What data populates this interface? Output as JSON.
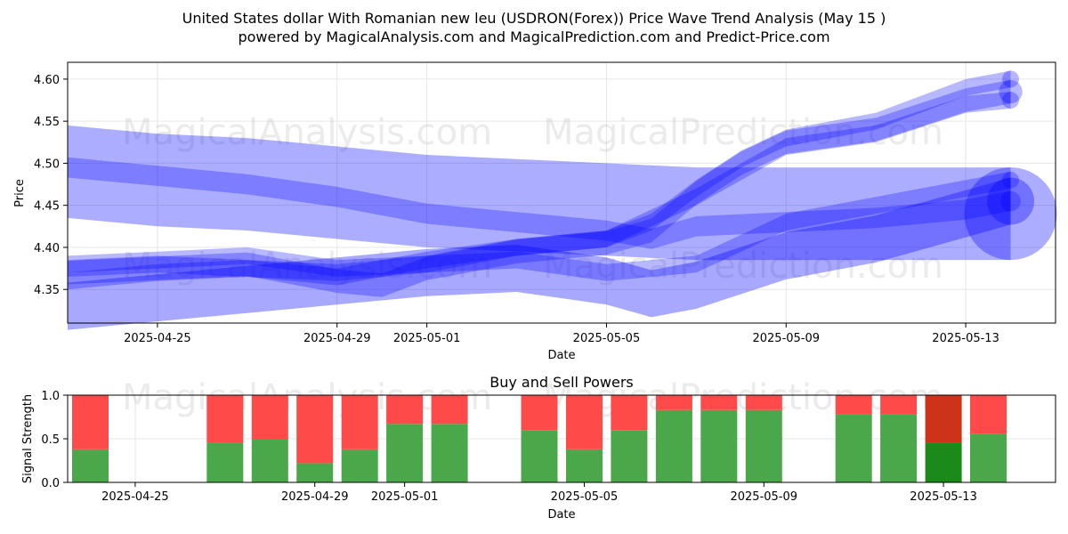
{
  "chart_data": [
    {
      "type": "area",
      "title": "United States dollar With Romanian new leu (USDRON(Forex)) Price Wave Trend Analysis (May 15 )",
      "subtitle": "powered by MagicalAnalysis.com and MagicalPrediction.com and Predict-Price.com",
      "xlabel": "Date",
      "ylabel": "Price",
      "x_ticks": [
        "2025-04-25",
        "2025-04-29",
        "2025-05-01",
        "2025-05-05",
        "2025-05-09",
        "2025-05-13"
      ],
      "y_ticks": [
        "4.35",
        "4.40",
        "4.45",
        "4.50",
        "4.55",
        "4.60"
      ],
      "xlim": [
        "2025-04-23",
        "2025-05-15"
      ],
      "ylim": [
        4.31,
        4.62
      ],
      "grid": true,
      "watermarks": [
        "MagicalAnalysis.com",
        "MagicalPrediction.com"
      ],
      "band_color": "#0000ff",
      "series": [
        {
          "x": [
            "2025-04-23",
            "2025-04-25",
            "2025-04-27",
            "2025-04-29",
            "2025-05-01",
            "2025-05-03",
            "2025-05-05",
            "2025-05-07",
            "2025-05-09",
            "2025-05-11",
            "2025-05-13",
            "2025-05-14"
          ],
          "y": [
            4.49,
            4.48,
            4.475,
            4.465,
            4.455,
            4.45,
            4.445,
            4.44,
            4.44,
            4.44,
            4.44,
            4.44
          ],
          "band": 0.055
        },
        {
          "x": [
            "2025-04-23",
            "2025-04-25",
            "2025-04-27",
            "2025-04-29",
            "2025-05-01",
            "2025-05-03",
            "2025-05-05",
            "2025-05-06",
            "2025-05-07",
            "2025-05-09",
            "2025-05-11",
            "2025-05-13",
            "2025-05-14"
          ],
          "y": [
            4.495,
            4.485,
            4.475,
            4.46,
            4.44,
            4.43,
            4.42,
            4.41,
            4.425,
            4.43,
            4.435,
            4.445,
            4.455
          ],
          "band": 0.012
        },
        {
          "x": [
            "2025-04-23",
            "2025-04-25",
            "2025-04-27",
            "2025-04-29",
            "2025-05-01",
            "2025-05-03",
            "2025-05-05",
            "2025-05-06",
            "2025-05-07",
            "2025-05-09",
            "2025-05-11",
            "2025-05-13",
            "2025-05-14"
          ],
          "y": [
            4.33,
            4.34,
            4.35,
            4.36,
            4.37,
            4.375,
            4.36,
            4.345,
            4.355,
            4.39,
            4.41,
            4.44,
            4.455
          ],
          "band": 0.028
        },
        {
          "x": [
            "2025-04-23",
            "2025-04-25",
            "2025-04-27",
            "2025-04-29",
            "2025-05-01",
            "2025-05-03",
            "2025-05-05",
            "2025-05-07",
            "2025-05-09",
            "2025-05-11",
            "2025-05-13",
            "2025-05-14"
          ],
          "y": [
            4.375,
            4.38,
            4.375,
            4.37,
            4.38,
            4.385,
            4.37,
            4.38,
            4.43,
            4.45,
            4.47,
            4.48
          ],
          "band": 0.01
        },
        {
          "x": [
            "2025-04-23",
            "2025-04-25",
            "2025-04-27",
            "2025-04-29",
            "2025-04-30",
            "2025-05-01",
            "2025-05-03",
            "2025-05-05",
            "2025-05-06",
            "2025-05-07",
            "2025-05-08",
            "2025-05-09",
            "2025-05-11",
            "2025-05-13",
            "2025-05-14"
          ],
          "y": [
            4.37,
            4.375,
            4.38,
            4.36,
            4.355,
            4.375,
            4.395,
            4.405,
            4.42,
            4.465,
            4.5,
            4.525,
            4.54,
            4.575,
            4.585
          ],
          "band": 0.014
        },
        {
          "x": [
            "2025-04-23",
            "2025-04-25",
            "2025-04-27",
            "2025-04-29",
            "2025-05-01",
            "2025-05-03",
            "2025-05-05",
            "2025-05-06",
            "2025-05-07",
            "2025-05-08",
            "2025-05-09",
            "2025-05-11",
            "2025-05-13",
            "2025-05-14"
          ],
          "y": [
            4.38,
            4.385,
            4.39,
            4.375,
            4.38,
            4.4,
            4.41,
            4.43,
            4.47,
            4.505,
            4.53,
            4.55,
            4.59,
            4.6
          ],
          "band": 0.01
        },
        {
          "x": [
            "2025-04-23",
            "2025-04-25",
            "2025-04-27",
            "2025-04-29",
            "2025-05-01",
            "2025-05-03",
            "2025-05-05",
            "2025-05-07",
            "2025-05-09",
            "2025-05-11",
            "2025-05-13",
            "2025-05-14"
          ],
          "y": [
            4.36,
            4.37,
            4.375,
            4.365,
            4.385,
            4.4,
            4.41,
            4.46,
            4.52,
            4.535,
            4.57,
            4.575
          ],
          "band": 0.01
        }
      ]
    },
    {
      "type": "bar",
      "title": "Buy and Sell Powers",
      "xlabel": "Date",
      "ylabel": "Signal Strength",
      "x_ticks": [
        "2025-04-25",
        "2025-04-29",
        "2025-05-01",
        "2025-05-05",
        "2025-05-09",
        "2025-05-13"
      ],
      "y_ticks": [
        "0.0",
        "0.5",
        "1.0"
      ],
      "ylim": [
        0,
        1
      ],
      "buy_color": "#4aa84a",
      "sell_color": "#ff4a4a",
      "highlight_buy_color": "#1a8a1a",
      "highlight_sell_color": "#cc3318",
      "categories": [
        "2025-04-24",
        "2025-04-26",
        "2025-04-27",
        "2025-04-28",
        "2025-04-29",
        "2025-04-30",
        "2025-05-01",
        "2025-05-02",
        "2025-05-04",
        "2025-05-05",
        "2025-05-06",
        "2025-05-07",
        "2025-05-08",
        "2025-05-09",
        "2025-05-11",
        "2025-05-12",
        "2025-05-13",
        "2025-05-14"
      ],
      "series": [
        {
          "name": "Buy",
          "values": [
            0.38,
            0,
            0.45,
            0.5,
            0.22,
            0.38,
            0.67,
            0.67,
            0.6,
            0.38,
            0.6,
            0.83,
            0.83,
            0.83,
            0.78,
            0.78,
            0.45,
            0.56
          ]
        },
        {
          "name": "Sell",
          "values": [
            0.62,
            0,
            0.55,
            0.5,
            0.78,
            0.62,
            0.33,
            0.33,
            0.4,
            0.62,
            0.4,
            0.17,
            0.17,
            0.17,
            0.22,
            0.22,
            0.55,
            0.44
          ]
        }
      ],
      "highlight_category": "2025-05-13"
    }
  ]
}
